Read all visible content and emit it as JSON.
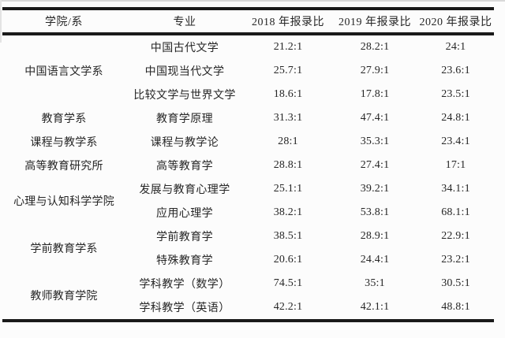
{
  "table": {
    "headers": [
      "学院/系",
      "专业",
      "2018 年报录比",
      "2019 年报录比",
      "2020 年报录比"
    ],
    "groups": [
      {
        "department": "中国语言文学系",
        "rows": [
          {
            "major": "中国古代文学",
            "r2018": "21.2:1",
            "r2019": "28.2:1",
            "r2020": "24:1"
          },
          {
            "major": "中国现当代文学",
            "r2018": "25.7:1",
            "r2019": "27.9:1",
            "r2020": "23.6:1"
          },
          {
            "major": "比较文学与世界文学",
            "r2018": "18.6:1",
            "r2019": "17.8:1",
            "r2020": "23.5:1"
          }
        ]
      },
      {
        "department": "教育学系",
        "rows": [
          {
            "major": "教育学原理",
            "r2018": "31.3:1",
            "r2019": "47.4:1",
            "r2020": "24.8:1"
          }
        ]
      },
      {
        "department": "课程与教学系",
        "rows": [
          {
            "major": "课程与教学论",
            "r2018": "28:1",
            "r2019": "35.3:1",
            "r2020": "23.4:1"
          }
        ]
      },
      {
        "department": "高等教育研究所",
        "rows": [
          {
            "major": "高等教育学",
            "r2018": "28.8:1",
            "r2019": "27.4:1",
            "r2020": "17:1"
          }
        ]
      },
      {
        "department": "心理与认知科学学院",
        "rows": [
          {
            "major": "发展与教育心理学",
            "r2018": "25.1:1",
            "r2019": "39.2:1",
            "r2020": "34.1:1"
          },
          {
            "major": "应用心理学",
            "r2018": "38.2:1",
            "r2019": "53.8:1",
            "r2020": "68.1:1"
          }
        ]
      },
      {
        "department": "学前教育学系",
        "rows": [
          {
            "major": "学前教育学",
            "r2018": "38.5:1",
            "r2019": "28.9:1",
            "r2020": "22.9:1"
          },
          {
            "major": "特殊教育学",
            "r2018": "20.6:1",
            "r2019": "24.4:1",
            "r2020": "23.2:1"
          }
        ]
      },
      {
        "department": "教师教育学院",
        "rows": [
          {
            "major": "学科教学（数学）",
            "r2018": "74.5:1",
            "r2019": "35:1",
            "r2020": "30.5:1"
          },
          {
            "major": "学科教学（英语）",
            "r2018": "42.2:1",
            "r2019": "42.1:1",
            "r2020": "48.8:1"
          }
        ]
      }
    ]
  },
  "colors": {
    "rule_line": "#1a1a1a",
    "text": "#262626",
    "background": "#fcfcfc",
    "photo_edge": "#d9d9d9"
  }
}
